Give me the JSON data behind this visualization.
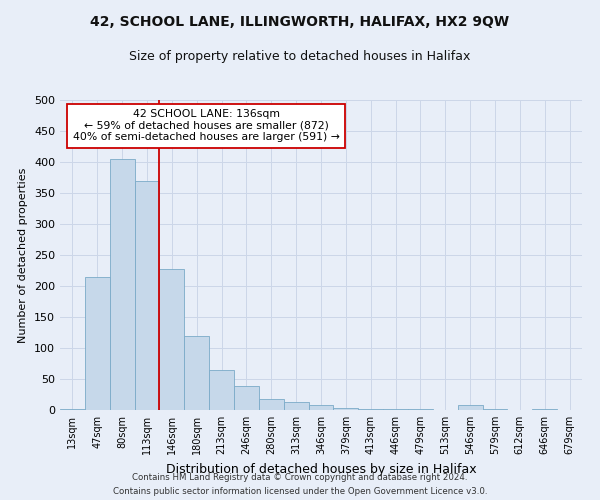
{
  "title_line1": "42, SCHOOL LANE, ILLINGWORTH, HALIFAX, HX2 9QW",
  "title_line2": "Size of property relative to detached houses in Halifax",
  "xlabel": "Distribution of detached houses by size in Halifax",
  "ylabel": "Number of detached properties",
  "categories": [
    "13sqm",
    "47sqm",
    "80sqm",
    "113sqm",
    "146sqm",
    "180sqm",
    "213sqm",
    "246sqm",
    "280sqm",
    "313sqm",
    "346sqm",
    "379sqm",
    "413sqm",
    "446sqm",
    "479sqm",
    "513sqm",
    "546sqm",
    "579sqm",
    "612sqm",
    "646sqm",
    "679sqm"
  ],
  "values": [
    2,
    215,
    405,
    370,
    228,
    120,
    65,
    38,
    17,
    13,
    8,
    3,
    2,
    2,
    1,
    0,
    8,
    1,
    0,
    1,
    0
  ],
  "bar_color": "#c6d8ea",
  "bar_edge_color": "#7aaac8",
  "vline_x_index": 4,
  "vline_color": "#cc0000",
  "annotation_text_line1": "42 SCHOOL LANE: 136sqm",
  "annotation_text_line2": "← 59% of detached houses are smaller (872)",
  "annotation_text_line3": "40% of semi-detached houses are larger (591) →",
  "annotation_box_color": "#ffffff",
  "annotation_box_edge": "#cc0000",
  "ylim": [
    0,
    500
  ],
  "yticks": [
    0,
    50,
    100,
    150,
    200,
    250,
    300,
    350,
    400,
    450,
    500
  ],
  "grid_color": "#ccd6e8",
  "bg_color": "#e8eef8",
  "fig_bg_color": "#e8eef8",
  "footer1": "Contains HM Land Registry data © Crown copyright and database right 2024.",
  "footer2": "Contains public sector information licensed under the Open Government Licence v3.0.",
  "title1_fontsize": 10,
  "title2_fontsize": 9,
  "ylabel_fontsize": 8,
  "xlabel_fontsize": 9
}
